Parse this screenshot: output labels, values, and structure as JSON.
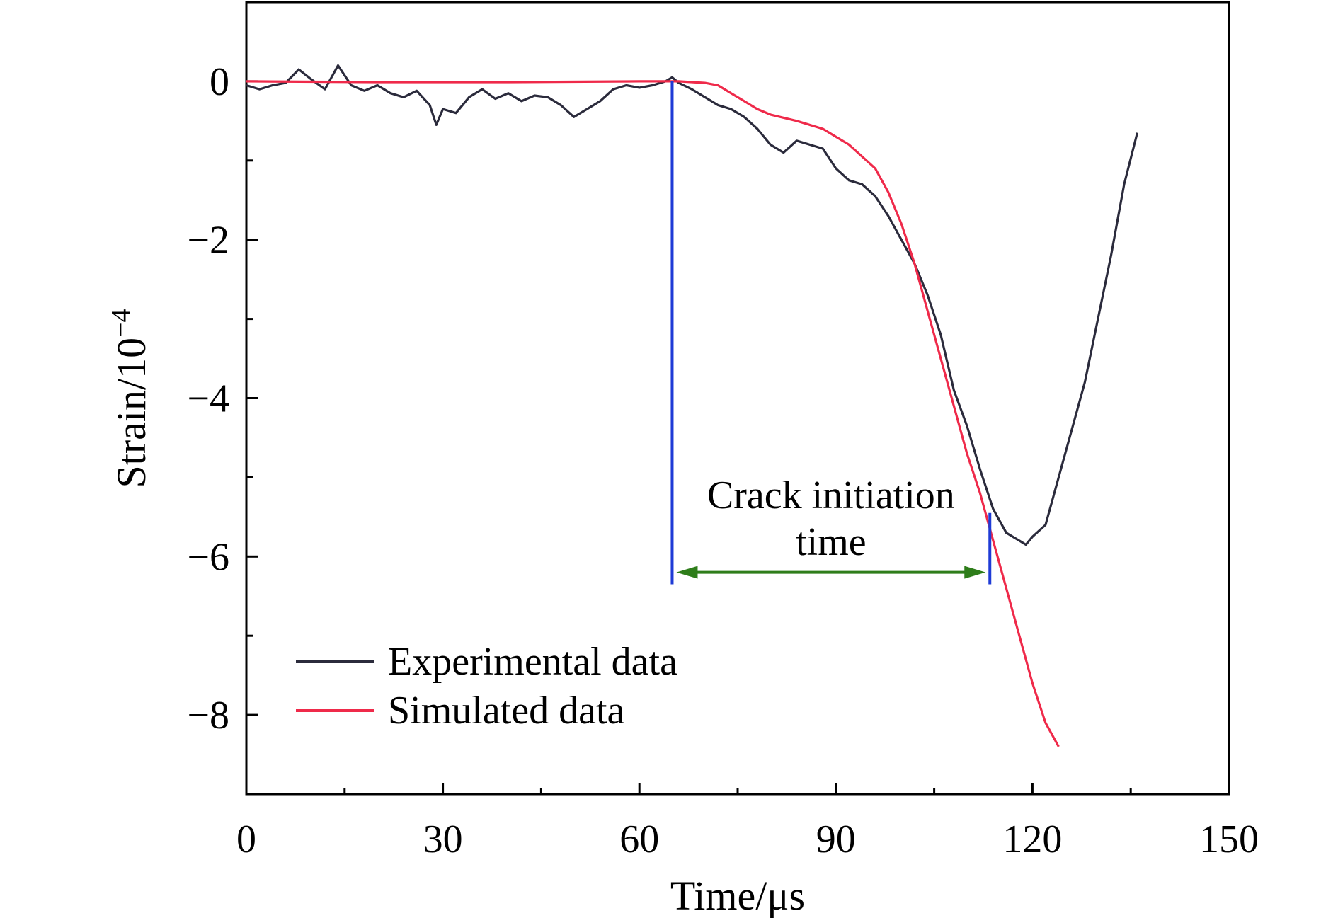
{
  "chart_data": {
    "type": "line",
    "xlabel": "Time/μs",
    "ylabel_base": "Strain/10",
    "ylabel_exp": "−4",
    "xlim": [
      0,
      150
    ],
    "ylim": [
      -9.0,
      1.0
    ],
    "x_ticks": [
      0,
      30,
      60,
      90,
      120,
      150
    ],
    "x_tick_labels": [
      "0",
      "30",
      "60",
      "90",
      "120",
      "150"
    ],
    "y_ticks": [
      0,
      -2,
      -4,
      -6,
      -8
    ],
    "y_tick_labels": [
      "0",
      "−2",
      "−4",
      "−6",
      "−8"
    ],
    "grid": false,
    "legend_position": "bottom-left",
    "series": [
      {
        "name": "Experimental data",
        "color": "#2b2b3c",
        "points": [
          [
            0,
            -0.05
          ],
          [
            2,
            -0.1
          ],
          [
            4,
            -0.05
          ],
          [
            6,
            -0.02
          ],
          [
            8,
            0.15
          ],
          [
            10,
            0.02
          ],
          [
            12,
            -0.1
          ],
          [
            14,
            0.2
          ],
          [
            16,
            -0.05
          ],
          [
            18,
            -0.12
          ],
          [
            20,
            -0.05
          ],
          [
            22,
            -0.15
          ],
          [
            24,
            -0.2
          ],
          [
            26,
            -0.12
          ],
          [
            28,
            -0.3
          ],
          [
            29,
            -0.55
          ],
          [
            30,
            -0.35
          ],
          [
            32,
            -0.4
          ],
          [
            34,
            -0.2
          ],
          [
            36,
            -0.1
          ],
          [
            38,
            -0.22
          ],
          [
            40,
            -0.15
          ],
          [
            42,
            -0.25
          ],
          [
            44,
            -0.18
          ],
          [
            46,
            -0.2
          ],
          [
            48,
            -0.3
          ],
          [
            50,
            -0.45
          ],
          [
            52,
            -0.35
          ],
          [
            54,
            -0.25
          ],
          [
            56,
            -0.1
          ],
          [
            58,
            -0.05
          ],
          [
            60,
            -0.08
          ],
          [
            62,
            -0.05
          ],
          [
            64,
            0.0
          ],
          [
            65,
            0.05
          ],
          [
            66,
            -0.02
          ],
          [
            68,
            -0.1
          ],
          [
            70,
            -0.2
          ],
          [
            72,
            -0.3
          ],
          [
            74,
            -0.35
          ],
          [
            76,
            -0.45
          ],
          [
            78,
            -0.6
          ],
          [
            80,
            -0.8
          ],
          [
            82,
            -0.9
          ],
          [
            84,
            -0.75
          ],
          [
            86,
            -0.8
          ],
          [
            88,
            -0.85
          ],
          [
            90,
            -1.1
          ],
          [
            92,
            -1.25
          ],
          [
            94,
            -1.3
          ],
          [
            96,
            -1.45
          ],
          [
            98,
            -1.7
          ],
          [
            100,
            -2.0
          ],
          [
            102,
            -2.3
          ],
          [
            104,
            -2.7
          ],
          [
            106,
            -3.2
          ],
          [
            108,
            -3.9
          ],
          [
            110,
            -4.35
          ],
          [
            112,
            -4.9
          ],
          [
            114,
            -5.4
          ],
          [
            116,
            -5.7
          ],
          [
            118,
            -5.8
          ],
          [
            119,
            -5.85
          ],
          [
            120,
            -5.75
          ],
          [
            122,
            -5.6
          ],
          [
            124,
            -5.0
          ],
          [
            126,
            -4.4
          ],
          [
            128,
            -3.8
          ],
          [
            130,
            -3.0
          ],
          [
            132,
            -2.2
          ],
          [
            134,
            -1.3
          ],
          [
            136,
            -0.65
          ]
        ]
      },
      {
        "name": "Simulated data",
        "color": "#ef2a4a",
        "points": [
          [
            0,
            0.0
          ],
          [
            20,
            -0.01
          ],
          [
            40,
            -0.01
          ],
          [
            60,
            0.0
          ],
          [
            66,
            0.0
          ],
          [
            70,
            -0.02
          ],
          [
            72,
            -0.05
          ],
          [
            74,
            -0.15
          ],
          [
            76,
            -0.25
          ],
          [
            78,
            -0.35
          ],
          [
            80,
            -0.42
          ],
          [
            84,
            -0.5
          ],
          [
            88,
            -0.6
          ],
          [
            90,
            -0.7
          ],
          [
            92,
            -0.8
          ],
          [
            94,
            -0.95
          ],
          [
            96,
            -1.1
          ],
          [
            98,
            -1.4
          ],
          [
            100,
            -1.8
          ],
          [
            102,
            -2.3
          ],
          [
            104,
            -2.9
          ],
          [
            106,
            -3.5
          ],
          [
            108,
            -4.1
          ],
          [
            110,
            -4.7
          ],
          [
            112,
            -5.2
          ],
          [
            114,
            -5.8
          ],
          [
            116,
            -6.4
          ],
          [
            118,
            -7.0
          ],
          [
            120,
            -7.6
          ],
          [
            122,
            -8.1
          ],
          [
            124,
            -8.4
          ]
        ]
      }
    ],
    "annotation": {
      "line1": "Crack initiation",
      "line2": "time",
      "start_x": 65,
      "end_x": 113.5,
      "arrow_y": -6.2,
      "line_top_y": 0.0,
      "line_bottom_y": -6.35,
      "right_line_top_y": -5.45,
      "marker_color": "#1f3bd6",
      "arrow_color": "#2e7d1a"
    }
  }
}
